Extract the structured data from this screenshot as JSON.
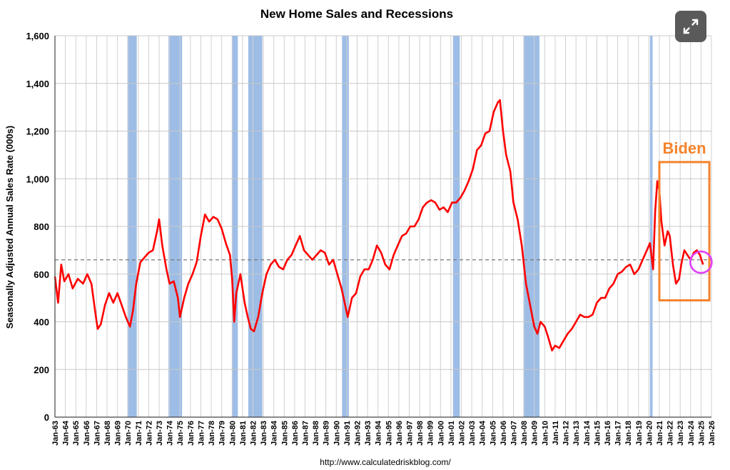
{
  "chart_data": {
    "type": "line",
    "title": "New Home Sales and Recessions",
    "ylabel": "Seasonally Adjusted Annual Sales Rate (000s)",
    "xlabel": "",
    "ylim": [
      0,
      1600
    ],
    "yticks": [
      "0",
      "200",
      "400",
      "600",
      "800",
      "1,000",
      "1,200",
      "1,400",
      "1,600"
    ],
    "ytick_values": [
      0,
      200,
      400,
      600,
      800,
      1000,
      1200,
      1400,
      1600
    ],
    "xlim": [
      1963,
      2026
    ],
    "xticks": [
      "Jan-63",
      "Jan-64",
      "Jan-65",
      "Jan-66",
      "Jan-67",
      "Jan-68",
      "Jan-69",
      "Jan-70",
      "Jan-71",
      "Jan-72",
      "Jan-73",
      "Jan-74",
      "Jan-75",
      "Jan-76",
      "Jan-77",
      "Jan-78",
      "Jan-79",
      "Jan-80",
      "Jan-81",
      "Jan-82",
      "Jan-83",
      "Jan-84",
      "Jan-85",
      "Jan-86",
      "Jan-87",
      "Jan-88",
      "Jan-89",
      "Jan-90",
      "Jan-91",
      "Jan-92",
      "Jan-93",
      "Jan-94",
      "Jan-95",
      "Jan-96",
      "Jan-97",
      "Jan-98",
      "Jan-99",
      "Jan-00",
      "Jan-01",
      "Jan-02",
      "Jan-03",
      "Jan-04",
      "Jan-05",
      "Jan-06",
      "Jan-07",
      "Jan-08",
      "Jan-09",
      "Jan-10",
      "Jan-11",
      "Jan-12",
      "Jan-13",
      "Jan-14",
      "Jan-15",
      "Jan-16",
      "Jan-17",
      "Jan-18",
      "Jan-19",
      "Jan-20",
      "Jan-21",
      "Jan-22",
      "Jan-23",
      "Jan-24",
      "Jan-25",
      "Jan-26"
    ],
    "grid": true,
    "series": [
      {
        "color": "#ff0000",
        "points": [
          [
            1963.0,
            590
          ],
          [
            1963.3,
            480
          ],
          [
            1963.6,
            640
          ],
          [
            1963.9,
            570
          ],
          [
            1964.3,
            600
          ],
          [
            1964.7,
            540
          ],
          [
            1965.2,
            580
          ],
          [
            1965.7,
            560
          ],
          [
            1966.1,
            600
          ],
          [
            1966.5,
            560
          ],
          [
            1966.9,
            430
          ],
          [
            1967.1,
            370
          ],
          [
            1967.4,
            390
          ],
          [
            1967.8,
            470
          ],
          [
            1968.2,
            520
          ],
          [
            1968.6,
            480
          ],
          [
            1969.0,
            520
          ],
          [
            1969.4,
            470
          ],
          [
            1969.8,
            420
          ],
          [
            1970.0,
            400
          ],
          [
            1970.2,
            380
          ],
          [
            1970.5,
            450
          ],
          [
            1970.8,
            560
          ],
          [
            1971.2,
            650
          ],
          [
            1971.6,
            670
          ],
          [
            1972.0,
            690
          ],
          [
            1972.4,
            700
          ],
          [
            1972.8,
            780
          ],
          [
            1973.0,
            830
          ],
          [
            1973.3,
            720
          ],
          [
            1973.7,
            620
          ],
          [
            1974.0,
            560
          ],
          [
            1974.4,
            570
          ],
          [
            1974.8,
            500
          ],
          [
            1975.0,
            420
          ],
          [
            1975.4,
            500
          ],
          [
            1975.8,
            560
          ],
          [
            1976.2,
            600
          ],
          [
            1976.6,
            650
          ],
          [
            1977.0,
            760
          ],
          [
            1977.4,
            850
          ],
          [
            1977.8,
            820
          ],
          [
            1978.2,
            840
          ],
          [
            1978.6,
            830
          ],
          [
            1979.0,
            790
          ],
          [
            1979.4,
            730
          ],
          [
            1979.8,
            680
          ],
          [
            1980.0,
            580
          ],
          [
            1980.2,
            400
          ],
          [
            1980.4,
            520
          ],
          [
            1980.8,
            600
          ],
          [
            1981.2,
            480
          ],
          [
            1981.5,
            420
          ],
          [
            1981.8,
            370
          ],
          [
            1982.1,
            360
          ],
          [
            1982.5,
            420
          ],
          [
            1982.9,
            520
          ],
          [
            1983.3,
            600
          ],
          [
            1983.7,
            640
          ],
          [
            1984.1,
            660
          ],
          [
            1984.5,
            630
          ],
          [
            1984.9,
            620
          ],
          [
            1985.3,
            660
          ],
          [
            1985.7,
            680
          ],
          [
            1986.1,
            720
          ],
          [
            1986.5,
            760
          ],
          [
            1986.9,
            700
          ],
          [
            1987.3,
            680
          ],
          [
            1987.7,
            660
          ],
          [
            1988.1,
            680
          ],
          [
            1988.5,
            700
          ],
          [
            1988.9,
            690
          ],
          [
            1989.3,
            640
          ],
          [
            1989.7,
            660
          ],
          [
            1990.1,
            600
          ],
          [
            1990.5,
            540
          ],
          [
            1990.9,
            460
          ],
          [
            1991.1,
            420
          ],
          [
            1991.5,
            500
          ],
          [
            1991.9,
            520
          ],
          [
            1992.3,
            590
          ],
          [
            1992.7,
            620
          ],
          [
            1993.1,
            620
          ],
          [
            1993.5,
            660
          ],
          [
            1993.9,
            720
          ],
          [
            1994.3,
            690
          ],
          [
            1994.7,
            640
          ],
          [
            1995.1,
            620
          ],
          [
            1995.5,
            680
          ],
          [
            1995.9,
            720
          ],
          [
            1996.3,
            760
          ],
          [
            1996.7,
            770
          ],
          [
            1997.1,
            800
          ],
          [
            1997.5,
            800
          ],
          [
            1997.9,
            830
          ],
          [
            1998.3,
            880
          ],
          [
            1998.7,
            900
          ],
          [
            1999.1,
            910
          ],
          [
            1999.5,
            900
          ],
          [
            1999.9,
            870
          ],
          [
            2000.3,
            880
          ],
          [
            2000.7,
            860
          ],
          [
            2001.1,
            900
          ],
          [
            2001.5,
            900
          ],
          [
            2001.9,
            920
          ],
          [
            2002.3,
            950
          ],
          [
            2002.7,
            990
          ],
          [
            2003.1,
            1040
          ],
          [
            2003.5,
            1120
          ],
          [
            2003.9,
            1140
          ],
          [
            2004.3,
            1190
          ],
          [
            2004.7,
            1200
          ],
          [
            2005.1,
            1280
          ],
          [
            2005.5,
            1320
          ],
          [
            2005.7,
            1330
          ],
          [
            2006.0,
            1200
          ],
          [
            2006.3,
            1100
          ],
          [
            2006.7,
            1030
          ],
          [
            2007.0,
            900
          ],
          [
            2007.4,
            830
          ],
          [
            2007.8,
            720
          ],
          [
            2008.2,
            560
          ],
          [
            2008.6,
            470
          ],
          [
            2009.0,
            380
          ],
          [
            2009.3,
            350
          ],
          [
            2009.6,
            400
          ],
          [
            2010.0,
            380
          ],
          [
            2010.3,
            340
          ],
          [
            2010.7,
            280
          ],
          [
            2011.0,
            300
          ],
          [
            2011.4,
            290
          ],
          [
            2011.8,
            320
          ],
          [
            2012.2,
            350
          ],
          [
            2012.6,
            370
          ],
          [
            2013.0,
            400
          ],
          [
            2013.4,
            430
          ],
          [
            2013.8,
            420
          ],
          [
            2014.2,
            420
          ],
          [
            2014.6,
            430
          ],
          [
            2015.0,
            480
          ],
          [
            2015.4,
            500
          ],
          [
            2015.8,
            500
          ],
          [
            2016.2,
            540
          ],
          [
            2016.6,
            560
          ],
          [
            2017.0,
            600
          ],
          [
            2017.4,
            610
          ],
          [
            2017.8,
            630
          ],
          [
            2018.2,
            640
          ],
          [
            2018.6,
            600
          ],
          [
            2019.0,
            620
          ],
          [
            2019.4,
            660
          ],
          [
            2019.8,
            700
          ],
          [
            2020.1,
            730
          ],
          [
            2020.4,
            620
          ],
          [
            2020.6,
            860
          ],
          [
            2020.8,
            990
          ],
          [
            2021.0,
            950
          ],
          [
            2021.2,
            820
          ],
          [
            2021.5,
            720
          ],
          [
            2021.8,
            780
          ],
          [
            2022.0,
            760
          ],
          [
            2022.3,
            640
          ],
          [
            2022.6,
            560
          ],
          [
            2022.9,
            580
          ],
          [
            2023.1,
            640
          ],
          [
            2023.4,
            700
          ],
          [
            2023.7,
            680
          ],
          [
            2024.0,
            660
          ],
          [
            2024.3,
            690
          ],
          [
            2024.6,
            700
          ],
          [
            2024.9,
            680
          ],
          [
            2025.2,
            640
          ]
        ]
      }
    ],
    "recessions": [
      [
        1969.95,
        1970.85
      ],
      [
        1973.9,
        1975.2
      ],
      [
        1980.0,
        1980.55
      ],
      [
        1981.55,
        1982.9
      ],
      [
        1990.55,
        1991.2
      ],
      [
        2001.2,
        2001.85
      ],
      [
        2007.95,
        2009.5
      ],
      [
        2020.1,
        2020.35
      ]
    ],
    "reference_line": 660,
    "annotations": [
      {
        "text": "Biden",
        "x_range": [
          2021.0,
          2025.8
        ],
        "y_range": [
          490,
          1070
        ],
        "color": "#f4832c"
      },
      {
        "text": "",
        "x": 2025.0,
        "y": 650,
        "color": "#e040fb",
        "shape": "circle"
      }
    ],
    "source": "http://www.calculatedriskblog.com/"
  },
  "controls": {
    "expand_icon": "expand-icon"
  }
}
